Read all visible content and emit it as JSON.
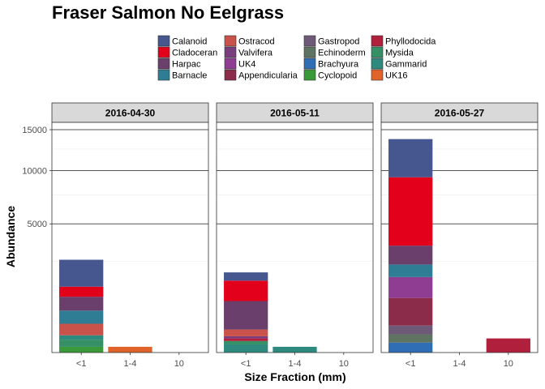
{
  "chart_data": {
    "type": "bar",
    "stacked": true,
    "title": "Fraser Salmon No Eelgrass",
    "xlabel": "Size Fraction (mm)",
    "ylabel": "Abundance",
    "y_scale": "sqrt",
    "ylim": [
      0,
      16000
    ],
    "y_ticks": [
      5000,
      10000,
      15000
    ],
    "y_tick_labels": [
      "5000",
      "10000",
      "15000"
    ],
    "grid": true,
    "legend_position": "top",
    "categories": [
      "<1",
      "1-4",
      "10"
    ],
    "facets": [
      "2016-04-30",
      "2016-05-11",
      "2016-05-27"
    ],
    "legend": [
      {
        "name": "Calanoid",
        "color": "#46568e"
      },
      {
        "name": "Cladoceran",
        "color": "#e2001a"
      },
      {
        "name": "Harpac",
        "color": "#6a3f6b"
      },
      {
        "name": "Barnacle",
        "color": "#2f7d94"
      },
      {
        "name": "Ostracod",
        "color": "#c9524a"
      },
      {
        "name": "Valvifera",
        "color": "#7a3d7e"
      },
      {
        "name": "UK4",
        "color": "#8e3d92"
      },
      {
        "name": "Appendicularia",
        "color": "#8b2d4a"
      },
      {
        "name": "Gastropod",
        "color": "#6e5a78"
      },
      {
        "name": "Echinoderm",
        "color": "#5e7361"
      },
      {
        "name": "Brachyura",
        "color": "#2f6db4"
      },
      {
        "name": "Cyclopoid",
        "color": "#3a9a3a"
      },
      {
        "name": "Phyllodocida",
        "color": "#b01f3c"
      },
      {
        "name": "Mysida",
        "color": "#359066"
      },
      {
        "name": "Gammarid",
        "color": "#2e8a7e"
      },
      {
        "name": "UK16",
        "color": "#e0632a"
      }
    ],
    "panels": [
      {
        "facet": "2016-04-30",
        "bars": [
          {
            "category": "<1",
            "segments": [
              {
                "name": "Cyclopoid",
                "value": 10
              },
              {
                "name": "Mysida",
                "value": 40
              },
              {
                "name": "Gammarid",
                "value": 40
              },
              {
                "name": "Ostracod",
                "value": 160
              },
              {
                "name": "Barnacle",
                "value": 280
              },
              {
                "name": "Harpac",
                "value": 410
              },
              {
                "name": "Cladoceran",
                "value": 370
              },
              {
                "name": "Calanoid",
                "value": 1290
              }
            ]
          },
          {
            "category": "1-4",
            "segments": [
              {
                "name": "UK16",
                "value": 10
              }
            ]
          }
        ]
      },
      {
        "facet": "2016-05-11",
        "bars": [
          {
            "category": "<1",
            "segments": [
              {
                "name": "Gammarid",
                "value": 20
              },
              {
                "name": "Mysida",
                "value": 20
              },
              {
                "name": "Phyllodocida",
                "value": 20
              },
              {
                "name": "Valvifera",
                "value": 20
              },
              {
                "name": "Ostracod",
                "value": 80
              },
              {
                "name": "Harpac",
                "value": 640
              },
              {
                "name": "Cladoceran",
                "value": 760
              },
              {
                "name": "Calanoid",
                "value": 380
              }
            ]
          },
          {
            "category": "1-4",
            "segments": [
              {
                "name": "Gammarid",
                "value": 10
              }
            ]
          }
        ]
      },
      {
        "facet": "2016-05-27",
        "bars": [
          {
            "category": "<1",
            "segments": [
              {
                "name": "Brachyura",
                "value": 30
              },
              {
                "name": "Echinoderm",
                "value": 70
              },
              {
                "name": "Gastropod",
                "value": 120
              },
              {
                "name": "Appendicularia",
                "value": 680
              },
              {
                "name": "UK4",
                "value": 820
              },
              {
                "name": "Barnacle",
                "value": 620
              },
              {
                "name": "Harpac",
                "value": 1110
              },
              {
                "name": "Cladoceran",
                "value": 5830
              },
              {
                "name": "Calanoid",
                "value": 4480
              }
            ]
          },
          {
            "category": "10",
            "segments": [
              {
                "name": "Phyllodocida",
                "value": 60
              }
            ]
          }
        ]
      }
    ]
  }
}
